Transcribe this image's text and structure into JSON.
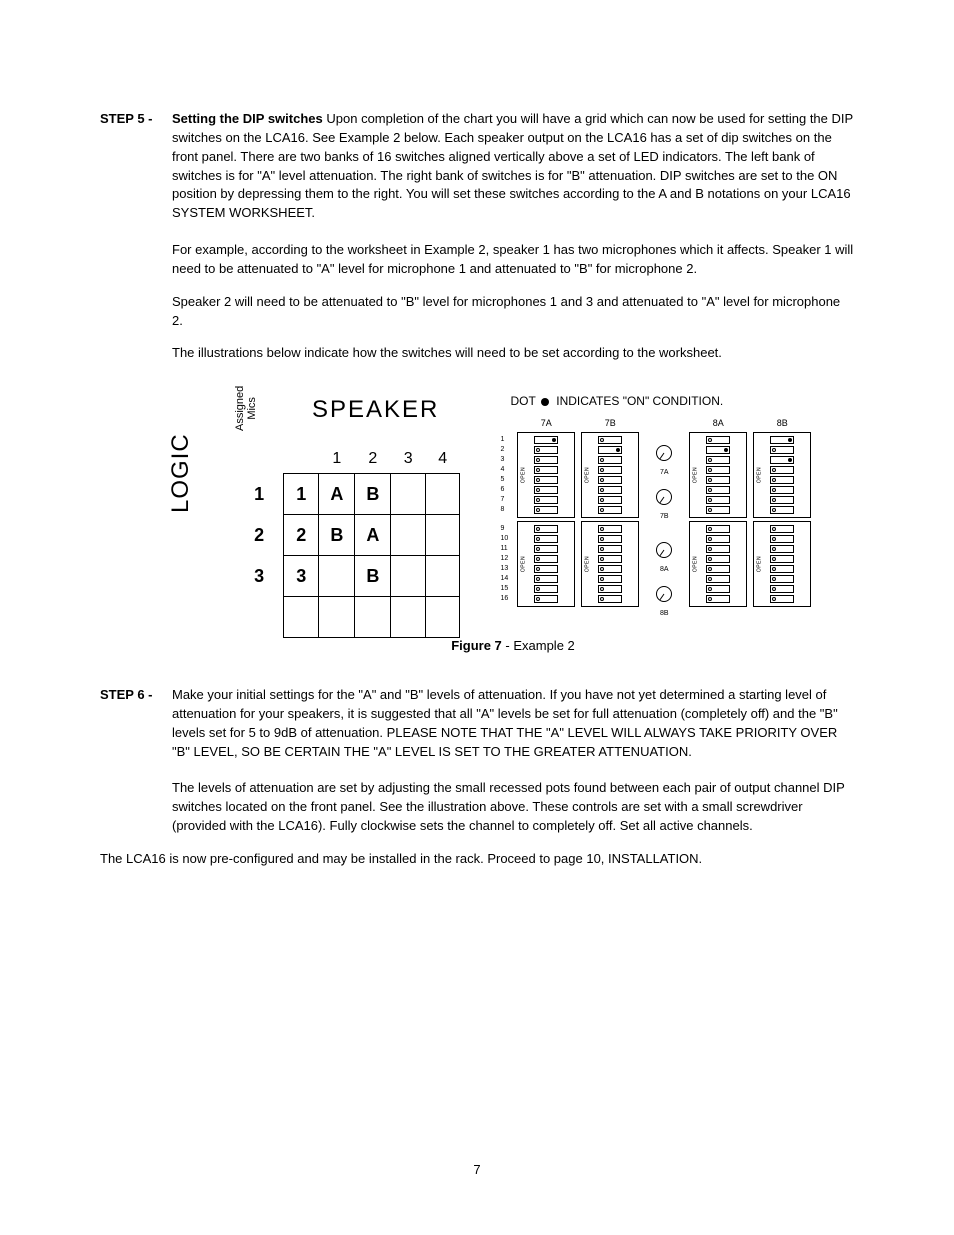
{
  "page_number": "7",
  "step5": {
    "label": "STEP 5 -",
    "title": "Setting the DIP switches",
    "body": "Upon completion of the chart you will have a grid which can now be used for setting the DIP switches on the LCA16.  See Example 2 below.  Each speaker output on the LCA16 has a set of dip switches on the front panel.  There are two banks of 16 switches aligned vertically above a set of LED indicators.  The left bank of switches is for \"A\" level attenuation.  The right bank of switches is for \"B\" attenuation.  DIP switches are set to the ON position by depressing them to the right.  You will set these switches according to the A and B notations on your LCA16 SYSTEM WORKSHEET.",
    "para2": "For example, according to the worksheet in Example 2, speaker 1 has two microphones which it affects. Speaker 1 will need to be attenuated to \"A\" level for microphone 1 and attenuated to \"B\" for microphone 2.",
    "para3": "Speaker 2 will need to be attenuated to \"B\" level for microphones 1 and 3 and attenuated to \"A\" level for microphone 2.",
    "para4": "The illustrations below indicate how the switches will need to be set according to the worksheet."
  },
  "figure": {
    "caption_bold": "Figure 7",
    "caption_rest": " - Example 2",
    "speaker_header": "SPEAKER",
    "logic_header": "LOGIC",
    "assigned_line1": "Assigned",
    "assigned_line2": "Mics",
    "col_headers": [
      "1",
      "2",
      "3",
      "4"
    ],
    "row_labels": [
      "1",
      "2",
      "3",
      ""
    ],
    "grid": {
      "r1": {
        "mic": "1",
        "c1": "A",
        "c2": "B",
        "c3": "",
        "c4": ""
      },
      "r2": {
        "mic": "2",
        "c1": "B",
        "c2": "A",
        "c3": "",
        "c4": ""
      },
      "r3": {
        "mic": "3",
        "c1": "",
        "c2": "B",
        "c3": "",
        "c4": ""
      },
      "r4": {
        "mic": "",
        "c1": "",
        "c2": "",
        "c3": "",
        "c4": ""
      }
    },
    "dot_legend_pre": "DOT",
    "dot_legend_post": "INDICATES \"ON\" CONDITION.",
    "bank_labels": [
      "7A",
      "7B",
      "8A",
      "8B"
    ],
    "pot_labels": [
      "7A",
      "7B",
      "8A",
      "8B"
    ],
    "row_numbers_top": [
      "1",
      "2",
      "3",
      "4",
      "5",
      "6",
      "7",
      "8"
    ],
    "row_numbers_bottom": [
      "9",
      "10",
      "11",
      "12",
      "13",
      "14",
      "15",
      "16"
    ],
    "open_label": "OPEN",
    "pot_scale": {
      "left": "0",
      "right": "5",
      "bottom": "10"
    },
    "on_switches": {
      "7A": [
        1
      ],
      "7B": [
        2
      ],
      "8A": [
        2
      ],
      "8B": [
        1,
        3
      ]
    },
    "colors": {
      "background": "#ffffff",
      "text": "#000000",
      "border": "#000000"
    }
  },
  "step6": {
    "label": "STEP 6 -",
    "body": "Make your initial settings for the \"A\" and \"B\" levels of attenuation.  If you have not yet determined a starting level of attenuation for your speakers, it is suggested that all \"A\" levels be set for full attenuation (completely off) and the \"B\" levels set for 5 to 9dB of attenuation.  PLEASE NOTE THAT THE \"A\" LEVEL WILL ALWAYS TAKE PRIORITY OVER \"B\" LEVEL, SO BE CERTAIN THE \"A\" LEVEL IS SET TO THE GREATER ATTENUATION.",
    "para2": "The levels of attenuation are set by adjusting the small recessed pots found between each pair of output channel DIP switches located on the front panel.  See the illustration above.  These controls are set with a small screwdriver (provided with the LCA16).  Fully clockwise sets the channel to completely off.  Set all active channels."
  },
  "closing": "The LCA16 is now pre-configured and may be installed in the rack.  Proceed to page 10, INSTALLATION."
}
